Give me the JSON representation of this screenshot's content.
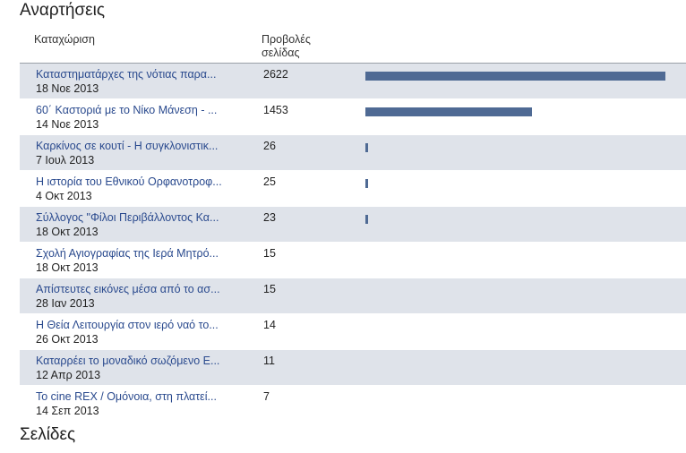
{
  "sections": {
    "posts_title": "Αναρτήσεις",
    "pages_title": "Σελίδες"
  },
  "table": {
    "col_entry": "Καταχώριση",
    "col_views": "Προβολές σελίδας",
    "max_views": 2622,
    "bar_color": "#4f6a94",
    "rows": [
      {
        "title": "Καταστηματάρχες της νότιας παρα...",
        "date": "18 Νοε 2013",
        "views": "2622",
        "views_value": 2622
      },
      {
        "title": "60΄ Καστοριά με το Νίκο Μάνεση - ...",
        "date": "14 Νοε 2013",
        "views": "1453",
        "views_value": 1453
      },
      {
        "title": "Καρκίνος σε κουτί - Η συγκλονιστικ...",
        "date": "7 Ιουλ 2013",
        "views": "26",
        "views_value": 26
      },
      {
        "title": "Η ιστορία του Εθνικού Ορφανοτροφ...",
        "date": "4 Οκτ 2013",
        "views": "25",
        "views_value": 25
      },
      {
        "title": "Σύλλογος \"Φίλοι Περιβάλλοντος Κα...",
        "date": "18 Οκτ 2013",
        "views": "23",
        "views_value": 23
      },
      {
        "title": "Σχολή Αγιογραφίας της Ιερά Μητρό...",
        "date": "18 Οκτ 2013",
        "views": "15",
        "views_value": 15
      },
      {
        "title": "Απίστευτες εικόνες μέσα από το ασ...",
        "date": "28 Ιαν 2013",
        "views": "15",
        "views_value": 15
      },
      {
        "title": "Η Θεία Λειτουργία στον ιερό ναό το...",
        "date": "26 Οκτ 2013",
        "views": "14",
        "views_value": 14
      },
      {
        "title": "Καταρρέει το μοναδικό σωζόμενο Ε...",
        "date": "12 Απρ 2013",
        "views": "11",
        "views_value": 11
      },
      {
        "title": "Το cine REX / Ομόνοια, στη πλατεί...",
        "date": "14 Σεπ 2013",
        "views": "7",
        "views_value": 7
      }
    ]
  }
}
